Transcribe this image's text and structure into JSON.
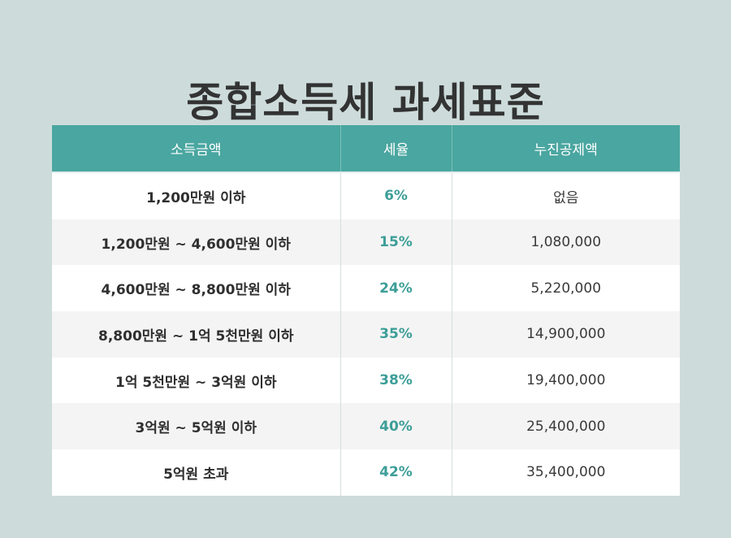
{
  "title": "종합소득세 과세표준",
  "columns": [
    "소득금액",
    "세율",
    "누진공제액"
  ],
  "rows": [
    {
      "range": "1,200만원 이하",
      "rate": "6%",
      "deduction": "없음"
    },
    {
      "range": "1,200만원 ~ 4,600만원 이하",
      "rate": "15%",
      "deduction": "1,080,000"
    },
    {
      "range": "4,600만원 ~ 8,800만원 이하",
      "rate": "24%",
      "deduction": "5,220,000"
    },
    {
      "range": "8,800만원 ~ 1억 5천만원 이하",
      "rate": "35%",
      "deduction": "14,900,000"
    },
    {
      "range": "1억 5천만원 ~ 3억원 이하",
      "rate": "38%",
      "deduction": "19,400,000"
    },
    {
      "range": "3억원 ~ 5억원 이하",
      "rate": "40%",
      "deduction": "25,400,000"
    },
    {
      "range": "5억원 초과",
      "rate": "42%",
      "deduction": "35,400,000"
    }
  ],
  "colors": {
    "background": "#cddcdb",
    "header": "#4aa6a0",
    "rate_text": "#3d9e98",
    "row_alt": "#f4f4f4"
  }
}
